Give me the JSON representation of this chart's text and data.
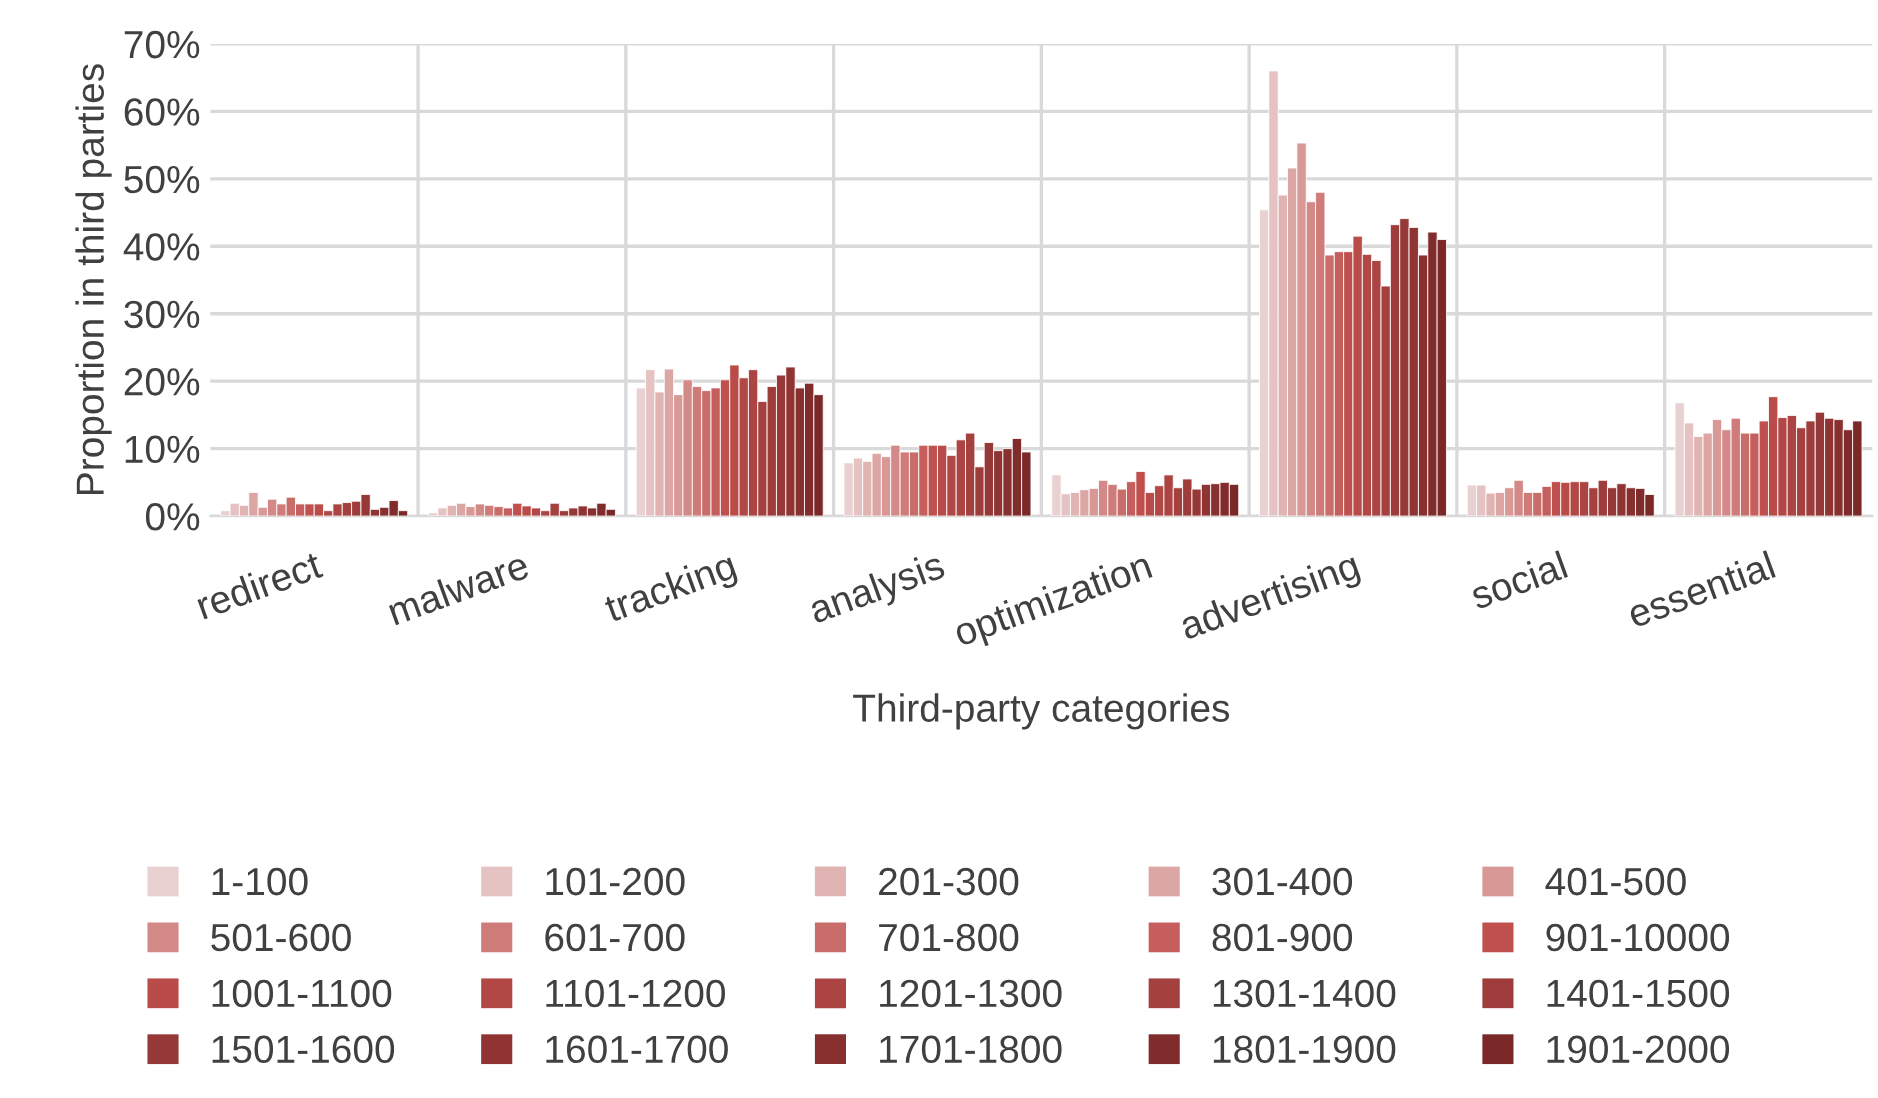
{
  "chart_data": {
    "type": "bar",
    "xlabel": "Third-party categories",
    "ylabel": "Proportion in third parties",
    "categories": [
      "redirect",
      "malware",
      "tracking",
      "analysis",
      "optimization",
      "advertising",
      "social",
      "essential"
    ],
    "ylim": [
      0,
      70
    ],
    "yticks": [
      {
        "value": 0,
        "label": "0%"
      },
      {
        "value": 10,
        "label": "10%"
      },
      {
        "value": 20,
        "label": "20%"
      },
      {
        "value": 30,
        "label": "30%"
      },
      {
        "value": 40,
        "label": "40%"
      },
      {
        "value": 50,
        "label": "50%"
      },
      {
        "value": 60,
        "label": "60%"
      },
      {
        "value": 70,
        "label": "70%"
      }
    ],
    "grid": true,
    "legend": "bottom",
    "series": [
      {
        "name": "1-100",
        "color": "#e9d1d1",
        "values": [
          0.8,
          0.5,
          19.0,
          7.9,
          6.1,
          45.4,
          4.6,
          16.8
        ]
      },
      {
        "name": "101-200",
        "color": "#e5c3c2",
        "values": [
          1.9,
          1.2,
          21.7,
          8.6,
          3.3,
          66.0,
          4.6,
          13.8
        ]
      },
      {
        "name": "201-300",
        "color": "#e1b4b4",
        "values": [
          1.6,
          1.6,
          18.4,
          8.1,
          3.5,
          47.6,
          3.4,
          11.8
        ]
      },
      {
        "name": "301-400",
        "color": "#dca6a5",
        "values": [
          3.5,
          1.9,
          21.8,
          9.3,
          3.9,
          51.6,
          3.5,
          12.3
        ]
      },
      {
        "name": "401-500",
        "color": "#d79896",
        "values": [
          1.3,
          1.4,
          18.0,
          8.8,
          4.1,
          55.3,
          4.2,
          14.3
        ]
      },
      {
        "name": "501-600",
        "color": "#d38988",
        "values": [
          2.5,
          1.8,
          20.2,
          10.5,
          5.3,
          46.6,
          5.3,
          12.8
        ]
      },
      {
        "name": "601-700",
        "color": "#ce7b79",
        "values": [
          1.8,
          1.6,
          19.2,
          9.5,
          4.7,
          48.0,
          3.5,
          14.5
        ]
      },
      {
        "name": "701-800",
        "color": "#c96d6a",
        "values": [
          2.8,
          1.4,
          18.6,
          9.5,
          4.0,
          38.7,
          3.5,
          12.3
        ]
      },
      {
        "name": "801-900",
        "color": "#c55e5c",
        "values": [
          1.8,
          1.2,
          19.0,
          10.5,
          5.1,
          39.2,
          4.4,
          12.3
        ]
      },
      {
        "name": "901-10000",
        "color": "#c0504d",
        "values": [
          1.8,
          1.9,
          20.2,
          10.5,
          6.6,
          39.2,
          5.1,
          14.1
        ]
      },
      {
        "name": "1001-1100",
        "color": "#b94c49",
        "values": [
          1.8,
          1.5,
          22.4,
          10.5,
          3.5,
          41.5,
          5.0,
          17.7
        ]
      },
      {
        "name": "1101-1200",
        "color": "#b24846",
        "values": [
          0.8,
          1.2,
          20.5,
          9.0,
          4.5,
          38.8,
          5.1,
          14.6
        ]
      },
      {
        "name": "1201-1300",
        "color": "#ab4442",
        "values": [
          1.8,
          0.8,
          21.7,
          11.3,
          6.1,
          37.9,
          5.1,
          14.9
        ]
      },
      {
        "name": "1301-1400",
        "color": "#a4403e",
        "values": [
          2.0,
          1.9,
          17.0,
          12.3,
          4.2,
          34.1,
          4.2,
          13.1
        ]
      },
      {
        "name": "1401-1500",
        "color": "#9d3c3a",
        "values": [
          2.2,
          0.8,
          19.2,
          7.3,
          5.5,
          43.2,
          5.3,
          14.1
        ]
      },
      {
        "name": "1501-1600",
        "color": "#963837",
        "values": [
          3.2,
          1.2,
          20.9,
          10.9,
          4.0,
          44.1,
          4.2,
          15.4
        ]
      },
      {
        "name": "1601-1700",
        "color": "#8f3433",
        "values": [
          1.0,
          1.5,
          22.1,
          9.7,
          4.7,
          42.8,
          4.8,
          14.5
        ]
      },
      {
        "name": "1701-1800",
        "color": "#88302f",
        "values": [
          1.3,
          1.2,
          19.0,
          10.0,
          4.8,
          38.7,
          4.2,
          14.3
        ]
      },
      {
        "name": "1801-1900",
        "color": "#812c2c",
        "values": [
          2.3,
          1.9,
          19.7,
          11.5,
          5.0,
          42.1,
          4.1,
          12.8
        ]
      },
      {
        "name": "1901-2000",
        "color": "#7a2828",
        "values": [
          0.8,
          1.0,
          18.0,
          9.5,
          4.7,
          41.0,
          3.2,
          14.1
        ]
      }
    ]
  }
}
